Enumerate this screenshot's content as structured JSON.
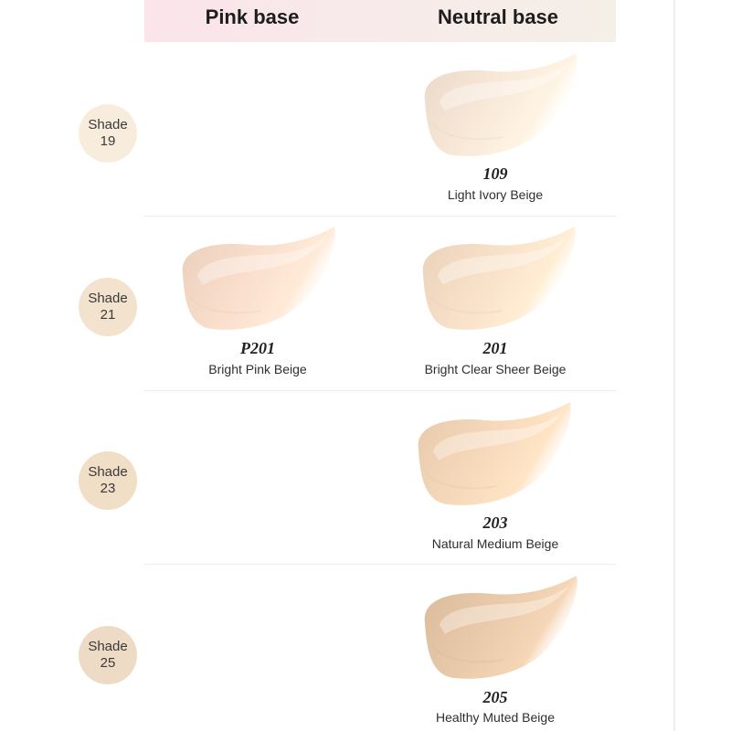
{
  "header": {
    "pink_label": "Pink base",
    "neutral_label": "Neutral base"
  },
  "rows": [
    {
      "shade_word": "Shade",
      "shade_number": "19",
      "circle_color": "#f8ecdc",
      "neutral": {
        "code": "109",
        "name": "Light Ivory Beige",
        "color": "#f7e6d6"
      }
    },
    {
      "shade_word": "Shade",
      "shade_number": "21",
      "circle_color": "#f3e2cd",
      "pink": {
        "code": "P201",
        "name": "Bright Pink Beige",
        "color": "#f8dcca"
      },
      "neutral": {
        "code": "201",
        "name": "Bright Clear Sheer Beige",
        "color": "#f6dfc6"
      }
    },
    {
      "shade_word": "Shade",
      "shade_number": "23",
      "circle_color": "#f1dec6",
      "neutral": {
        "code": "203",
        "name": "Natural Medium Beige",
        "color": "#f4d6b8"
      }
    },
    {
      "shade_word": "Shade",
      "shade_number": "25",
      "circle_color": "#eddbc5",
      "neutral": {
        "code": "205",
        "name": "Healthy Muted Beige",
        "color": "#e7c8a8"
      }
    }
  ]
}
